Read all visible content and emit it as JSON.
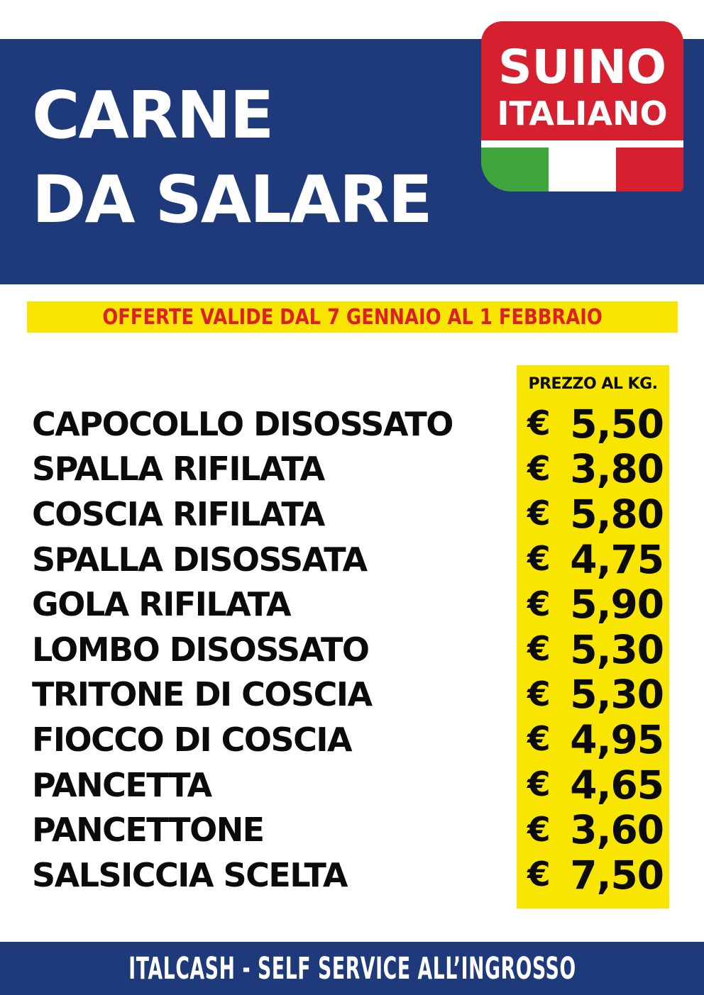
{
  "header": {
    "title_line1": "CARNE",
    "title_line2": "DA SALARE"
  },
  "badge": {
    "line1": "SUINO",
    "line2": "ITALIANO"
  },
  "offer_banner": {
    "text": "OFFERTE VALIDE DAL 7 GENNAIO AL 1 FEBBRAIO"
  },
  "price_table": {
    "column_header": "PREZZO AL KG.",
    "currency": "€",
    "items": [
      {
        "name": "CAPOCOLLO DISOSSATO",
        "price": "5,50"
      },
      {
        "name": "SPALLA RIFILATA",
        "price": "3,80"
      },
      {
        "name": "COSCIA RIFILATA",
        "price": "5,80"
      },
      {
        "name": "SPALLA DISOSSATA",
        "price": "4,75"
      },
      {
        "name": "GOLA RIFILATA",
        "price": "5,90"
      },
      {
        "name": "LOMBO DISOSSATO",
        "price": "5,30"
      },
      {
        "name": "TRITONE DI COSCIA",
        "price": "5,30"
      },
      {
        "name": "FIOCCO DI COSCIA",
        "price": "4,95"
      },
      {
        "name": "PANCETTA",
        "price": "4,65"
      },
      {
        "name": "PANCETTONE",
        "price": "3,60"
      },
      {
        "name": "SALSICCIA SCELTA",
        "price": "7,50"
      }
    ]
  },
  "footer": {
    "text": "ITALCASH - SELF SERVICE ALL’INGROSSO"
  },
  "colors": {
    "blue": "#1e3a7b",
    "red": "#d6202f",
    "offer-red": "#dd1f28",
    "yellow": "#f8e600",
    "green": "#3fa53c"
  }
}
